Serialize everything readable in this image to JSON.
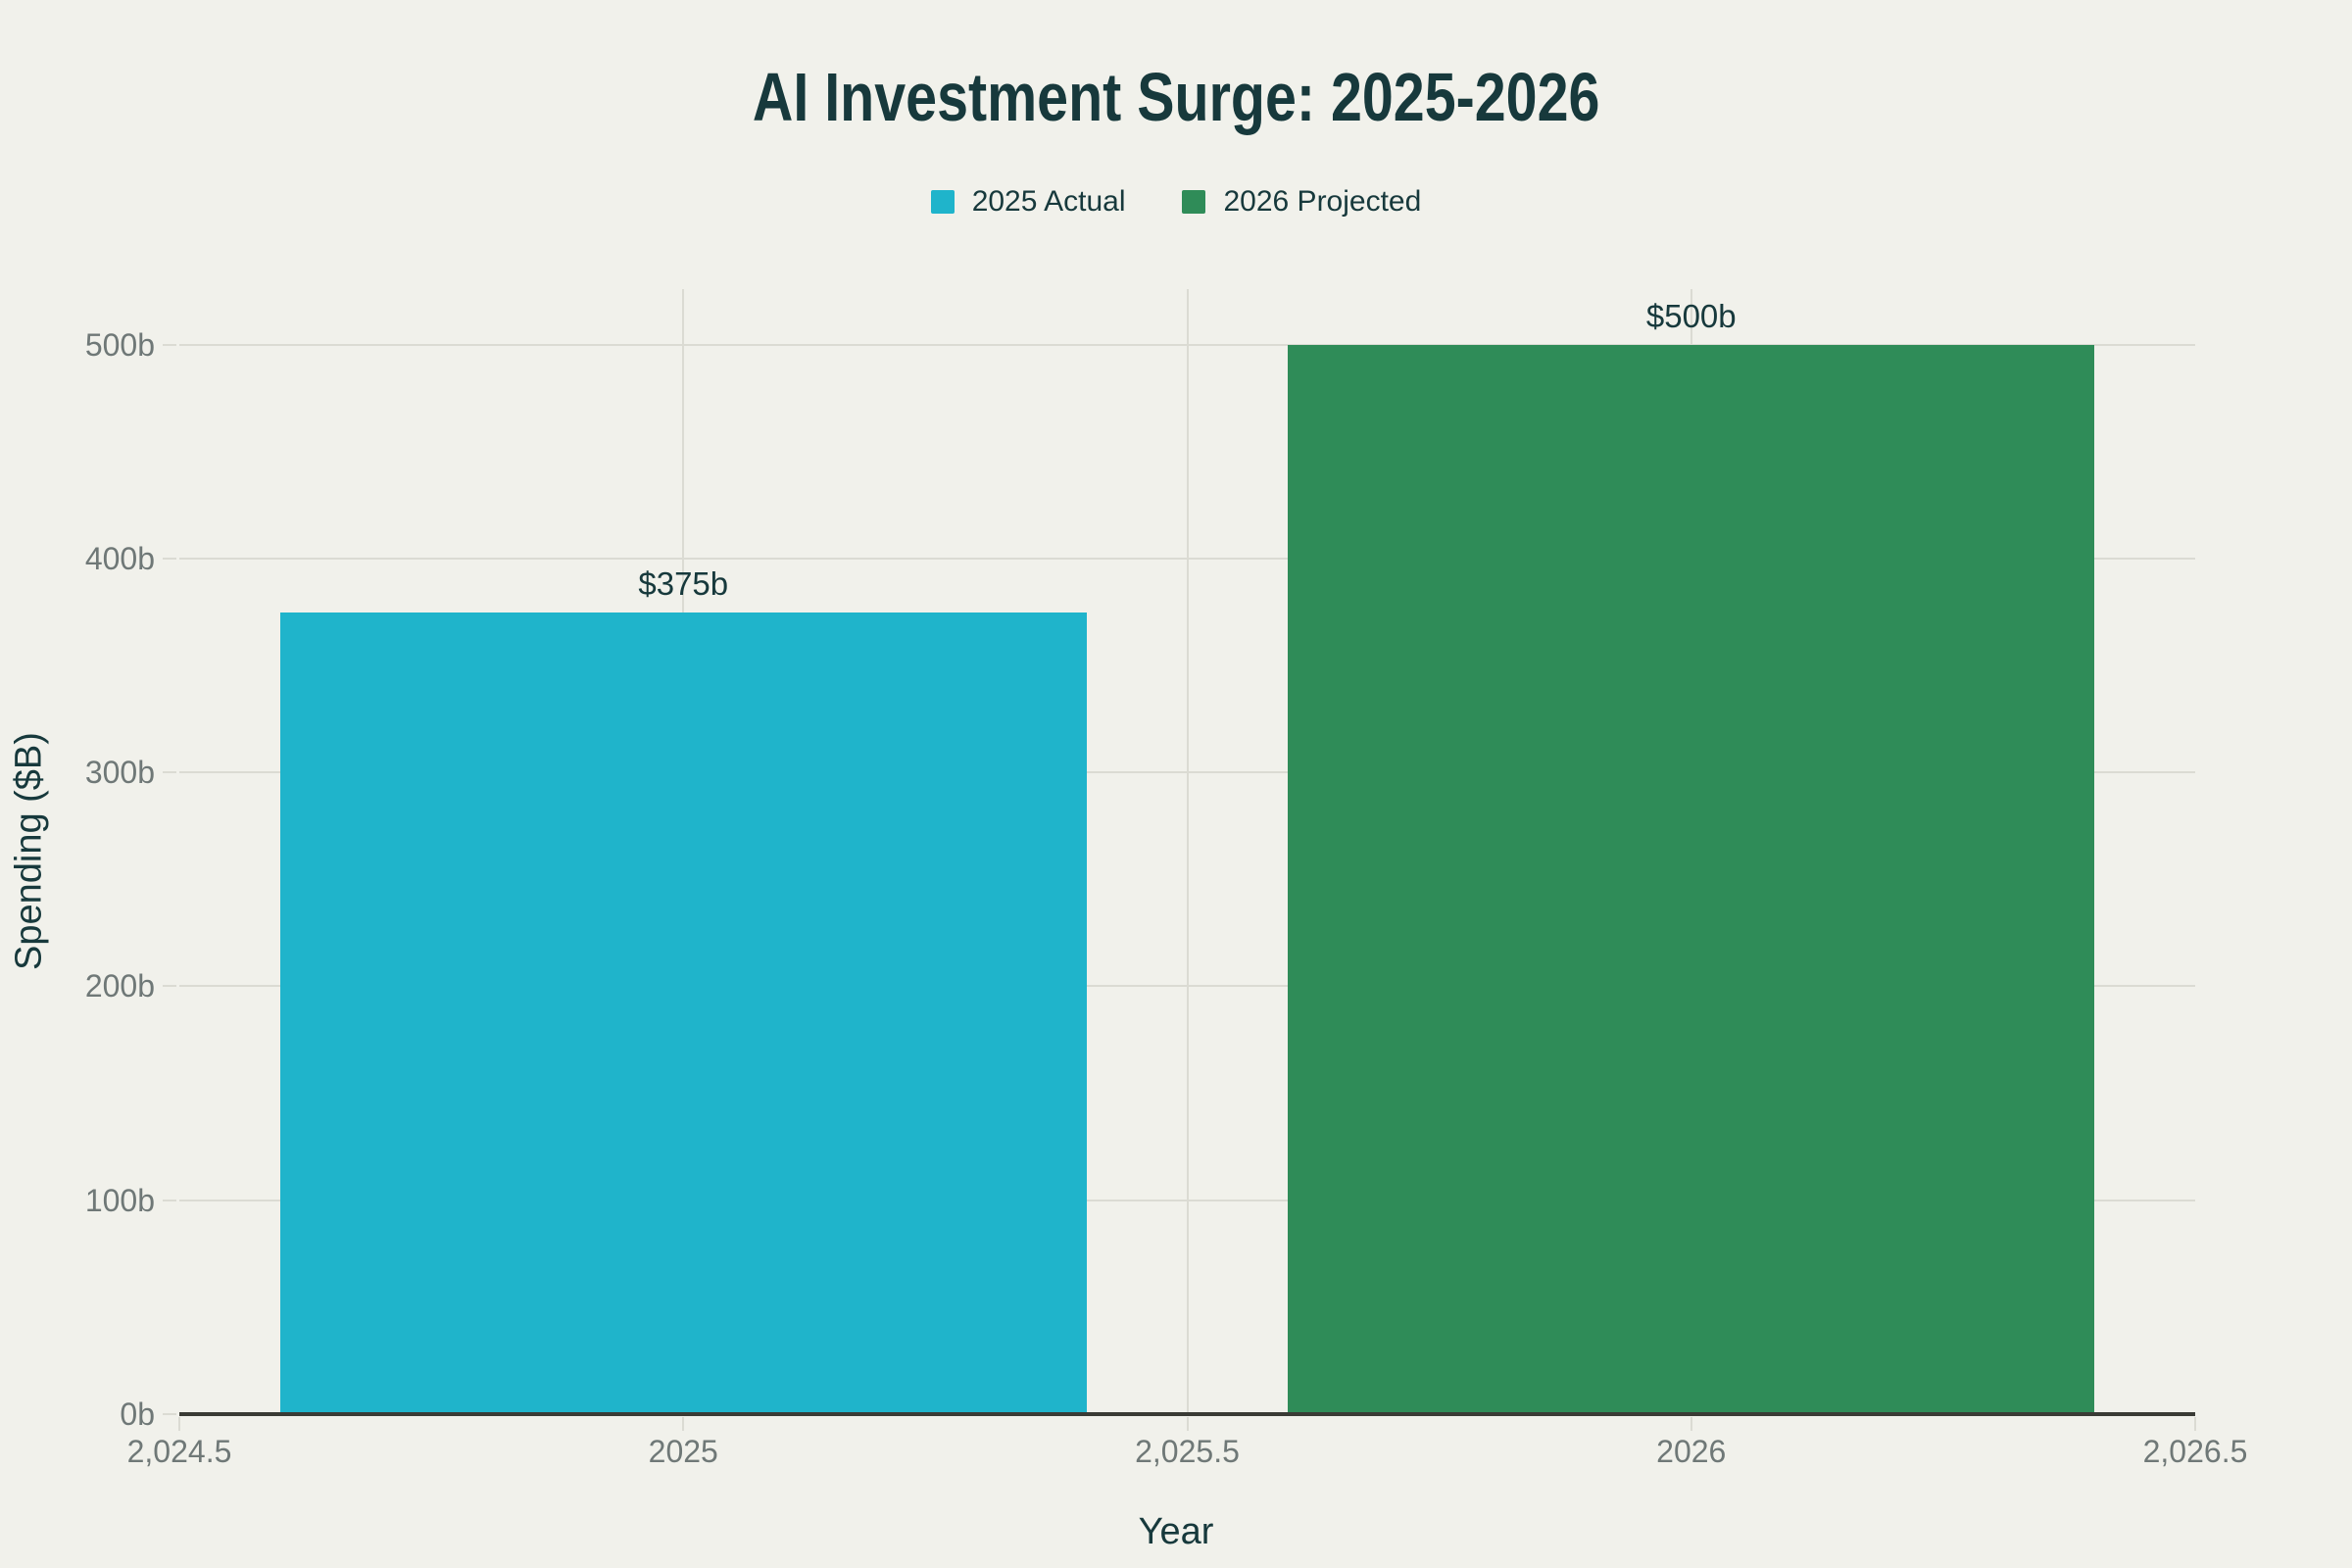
{
  "chart_data": {
    "type": "bar",
    "title": "AI Investment Surge: 2025-2026",
    "xlabel": "Year",
    "ylabel": "Spending ($B)",
    "legend_position": "top-center",
    "grid": true,
    "bar_width_years": 0.8,
    "x_axis": {
      "range": [
        2024.5,
        2026.5
      ],
      "ticks": [
        {
          "value": 2024.5,
          "label": "2,024.5",
          "grid": false
        },
        {
          "value": 2025,
          "label": "2025",
          "grid": true
        },
        {
          "value": 2025.5,
          "label": "2,025.5",
          "grid": true
        },
        {
          "value": 2026,
          "label": "2026",
          "grid": true
        },
        {
          "value": 2026.5,
          "label": "2,026.5",
          "grid": false
        }
      ]
    },
    "y_axis": {
      "range": [
        0,
        526
      ],
      "ticks": [
        {
          "value": 0,
          "label": "0b"
        },
        {
          "value": 100,
          "label": "100b"
        },
        {
          "value": 200,
          "label": "200b"
        },
        {
          "value": 300,
          "label": "300b"
        },
        {
          "value": 400,
          "label": "400b"
        },
        {
          "value": 500,
          "label": "500b"
        }
      ]
    },
    "series": [
      {
        "name": "2025 Actual",
        "x": 2025,
        "y": 375,
        "value_label": "$375b",
        "color": "#1FB4CB"
      },
      {
        "name": "2026 Projected",
        "x": 2026,
        "y": 500,
        "value_label": "$500b",
        "color": "#2F8C58"
      }
    ],
    "colors": {
      "background": "#F1F1EB",
      "title_text": "#17393C",
      "tick_text": "#6F7877",
      "gridline": "#DBDBD3",
      "axis_line": "#3A3B35"
    }
  }
}
